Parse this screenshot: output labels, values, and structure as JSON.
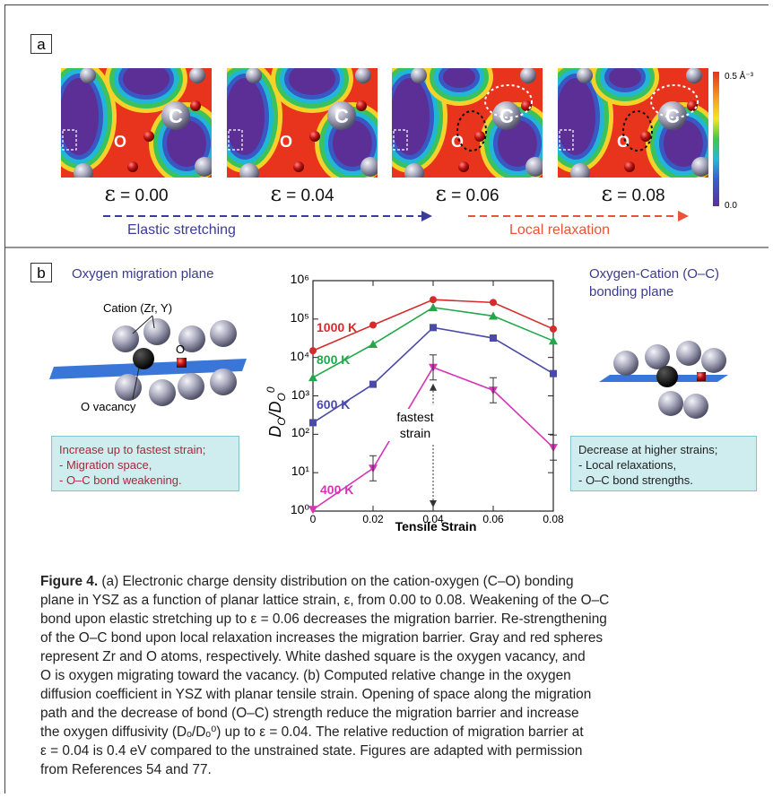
{
  "panel_a": {
    "label": "a",
    "strains": [
      {
        "symbol": "ε",
        "value": "= 0.00"
      },
      {
        "symbol": "ε",
        "value": "= 0.04"
      },
      {
        "symbol": "ε",
        "value": "= 0.06"
      },
      {
        "symbol": "ε",
        "value": "= 0.08"
      }
    ],
    "atom_c_label": "C",
    "atom_o_label": "O",
    "colorbar": {
      "max": "0.5 Å⁻³",
      "min": "0.0"
    },
    "elastic_label": "Elastic stretching",
    "relax_label": "Local relaxation",
    "colors": {
      "elastic": "#3b3b9a",
      "relax": "#e8543a"
    }
  },
  "panel_b": {
    "label": "b",
    "left_title": "Oxygen migration plane",
    "cation_label": "Cation (Zr, Y)",
    "o_label": "O",
    "vacancy_label": "O vacancy",
    "left_box": {
      "line1": "Increase up to fastest strain;",
      "line2": " - Migration space,",
      "line3": " - O–C bond weakening."
    },
    "right_title_1": "Oxygen-Cation (O–C)",
    "right_title_2": "bonding plane",
    "right_box": {
      "line1": "Decrease at higher strains;",
      "line2": " - Local relaxations,",
      "line3": " - O–C bond strengths."
    },
    "fastest_label_1": "fastest",
    "fastest_label_2": "strain"
  },
  "chart_data": {
    "type": "line",
    "xlabel": "Tensile Strain",
    "ylabel": "D_O/D_O^0",
    "yscale": "log",
    "x": [
      0,
      0.02,
      0.04,
      0.06,
      0.08
    ],
    "xticks": [
      "0",
      "0.02",
      "0.04",
      "0.06",
      "0.08"
    ],
    "yticks": [
      "10⁰",
      "10¹",
      "10²",
      "10³",
      "10⁴",
      "10⁵",
      "10⁶"
    ],
    "ylim": [
      1,
      1000000
    ],
    "series": [
      {
        "name": "1000 K",
        "color": "#d62b2b",
        "values": [
          15000,
          70000,
          320000,
          270000,
          55000
        ]
      },
      {
        "name": "800 K",
        "color": "#22a84a",
        "values": [
          3000,
          22000,
          200000,
          120000,
          27000
        ]
      },
      {
        "name": "600 K",
        "color": "#4a4aa8",
        "values": [
          200,
          2000,
          60000,
          32000,
          3800
        ]
      },
      {
        "name": "400 K",
        "color": "#d635b8",
        "values": [
          1.1,
          13,
          5500,
          1400,
          45
        ]
      }
    ]
  },
  "caption": {
    "title": "Figure 4.",
    "l1": " (a) Electronic charge density distribution on the cation-oxygen (C–O) bonding",
    "l2": "plane in YSZ as a function of planar lattice strain, ε, from 0.00 to 0.08. Weakening of the O–C",
    "l3": "bond upon elastic stretching up to ε = 0.06 decreases the migration barrier. Re-strengthening",
    "l4": "of the O–C bond upon local relaxation increases the migration barrier. Gray and red spheres",
    "l5": "represent Zr and O atoms, respectively. White dashed square is the oxygen vacancy, and",
    "l6": "O is oxygen migrating toward the vacancy. (b) Computed relative change in the oxygen",
    "l7": "diffusion coefficient in YSZ with planar tensile strain. Opening of space along the migration",
    "l8": "path and the decrease of bond (O–C) strength reduce the migration barrier and increase",
    "l9": "the oxygen diffusivity (Dₒ/Dₒ⁰) up to ε = 0.04. The relative reduction of migration barrier at",
    "l10": "ε = 0.04 is 0.4 eV compared to the unstrained state. Figures are adapted with permission",
    "l11": "from References 54 and 77."
  }
}
